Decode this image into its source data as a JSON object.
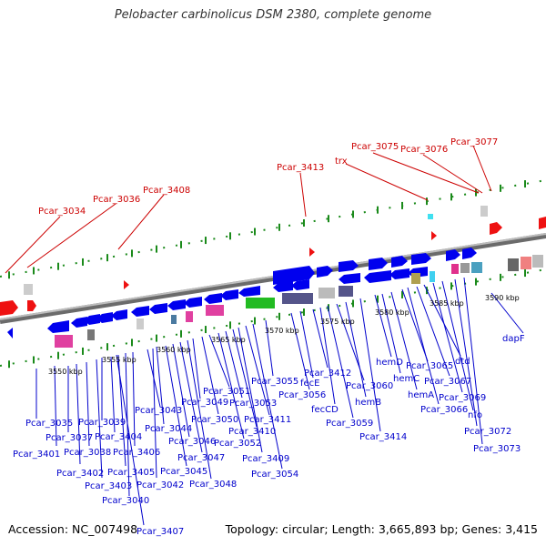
{
  "header": {
    "title": "Pelobacter carbinolicus DSM 2380, complete genome"
  },
  "footer": {
    "accession": "Accession: NC_007498",
    "topology": "Topology: circular; Length: 3,665,893 bp; Genes: 3,415"
  },
  "colors": {
    "forward_gene": "#0000ee",
    "leader_red": "#cc0000",
    "label_blue": "#0000cc",
    "tick_green": "#1a8a1a"
  },
  "scale_labels": [
    "3550 kbp",
    "3555 kbp",
    "3560 kbp",
    "3565 kbp",
    "3570 kbp",
    "3575 kbp",
    "3580 kbp",
    "3585 kbp",
    "3590 kbp"
  ],
  "red_labels": [
    "Pcar_3034",
    "Pcar_3036",
    "Pcar_3408",
    "Pcar_3413",
    "trx",
    "Pcar_3075",
    "Pcar_3076",
    "Pcar_3077"
  ],
  "gene_labels": [
    "Pcar_3035",
    "Pcar_3401",
    "Pcar_3037",
    "Pcar_3402",
    "Pcar_3038",
    "Pcar_3403",
    "Pcar_3039",
    "Pcar_3404",
    "Pcar_3405",
    "Pcar_3040",
    "Pcar_3406",
    "Pcar_3043",
    "Pcar_3042",
    "Pcar_3044",
    "Pcar_3045",
    "Pcar_3046",
    "Pcar_3047",
    "Pcar_3048",
    "Pcar_3049",
    "Pcar_3050",
    "Pcar_3051",
    "Pcar_3052",
    "Pcar_3053",
    "Pcar_3410",
    "Pcar_3409",
    "Pcar_3411",
    "Pcar_3054",
    "Pcar_3055",
    "Pcar_3056",
    "fecE",
    "Pcar_3412",
    "fecCD",
    "Pcar_3059",
    "Pcar_3060",
    "hemB",
    "Pcar_3414",
    "hemD",
    "hemC",
    "hemA",
    "Pcar_3065",
    "Pcar_3066",
    "Pcar_3067",
    "dtd",
    "Pcar_3069",
    "nfo",
    "Pcar_3072",
    "Pcar_3073",
    "dapF",
    "Pcar_3407"
  ]
}
